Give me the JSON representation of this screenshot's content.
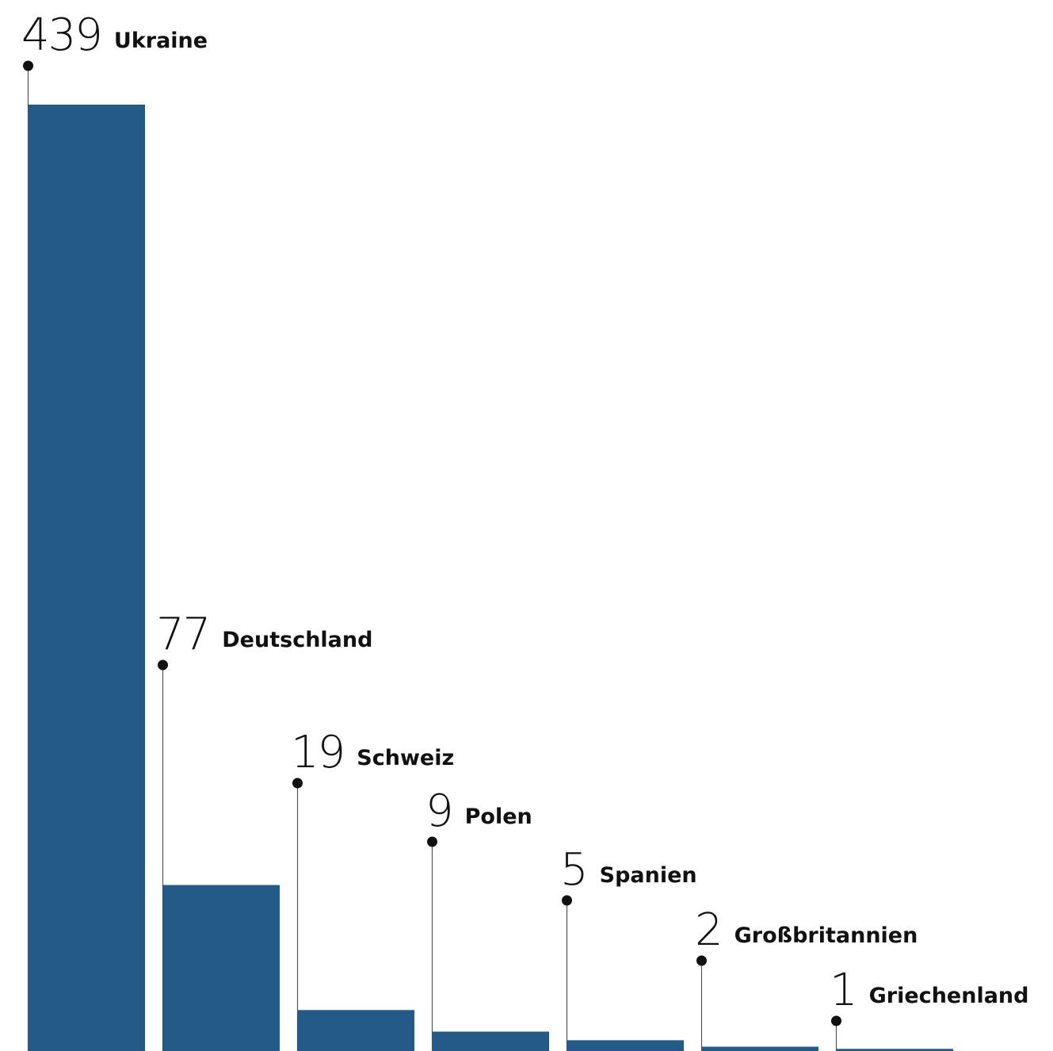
{
  "colors": {
    "bar": "#235a87",
    "text": "#111111",
    "leader": "#555555"
  },
  "chart_data": {
    "type": "bar",
    "categories": [
      "Ukraine",
      "Deutschland",
      "Schweiz",
      "Polen",
      "Spanien",
      "Großbritannien",
      "Griechenland"
    ],
    "values": [
      439,
      77,
      19,
      9,
      5,
      2,
      1
    ],
    "value_labels": [
      "439",
      "77",
      "19",
      "9",
      "5",
      "2",
      "1"
    ],
    "title": "",
    "xlabel": "",
    "ylabel": "",
    "ylim": [
      0,
      439
    ],
    "grid": false,
    "legend": "none"
  }
}
